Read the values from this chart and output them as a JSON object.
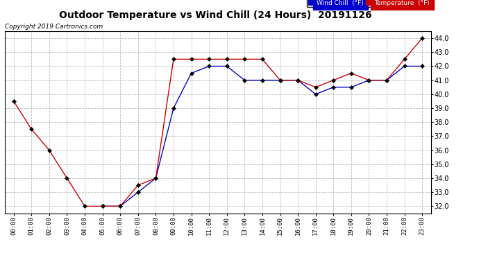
{
  "title": "Outdoor Temperature vs Wind Chill (24 Hours)  20191126",
  "copyright": "Copyright 2019 Cartronics.com",
  "temp_color": "#cc0000",
  "wind_color": "#0000cc",
  "background_color": "#ffffff",
  "grid_color": "#bbbbbb",
  "ylim": [
    31.5,
    44.5
  ],
  "yticks": [
    32.0,
    33.0,
    34.0,
    35.0,
    36.0,
    37.0,
    38.0,
    39.0,
    40.0,
    41.0,
    42.0,
    43.0,
    44.0
  ],
  "hours": [
    0,
    1,
    2,
    3,
    4,
    5,
    6,
    7,
    8,
    9,
    10,
    11,
    12,
    13,
    14,
    15,
    16,
    17,
    18,
    19,
    20,
    21,
    22,
    23
  ],
  "temperature": [
    39.5,
    37.5,
    36.0,
    34.0,
    32.0,
    32.0,
    32.0,
    33.5,
    34.0,
    42.5,
    42.5,
    42.5,
    42.5,
    42.5,
    42.5,
    41.0,
    41.0,
    40.5,
    41.0,
    41.5,
    41.0,
    41.0,
    42.5,
    44.0
  ],
  "wind_chill_hours": [
    5,
    6,
    7,
    8,
    9,
    10,
    11,
    12,
    13,
    14,
    15,
    16,
    17,
    18,
    19,
    20,
    21,
    22,
    23
  ],
  "wind_chill": [
    32.0,
    32.0,
    33.0,
    34.0,
    39.0,
    41.5,
    42.0,
    42.0,
    41.0,
    41.0,
    41.0,
    41.0,
    40.0,
    40.5,
    40.5,
    41.0,
    41.0,
    42.0,
    42.0
  ],
  "legend_wind_label": "Wind Chill  (°F)",
  "legend_temp_label": "Temperature  (°F)",
  "marker": "D",
  "markersize": 3,
  "title_fontsize": 10,
  "copyright_fontsize": 6.5,
  "tick_fontsize": 6.5,
  "ytick_fontsize": 7
}
